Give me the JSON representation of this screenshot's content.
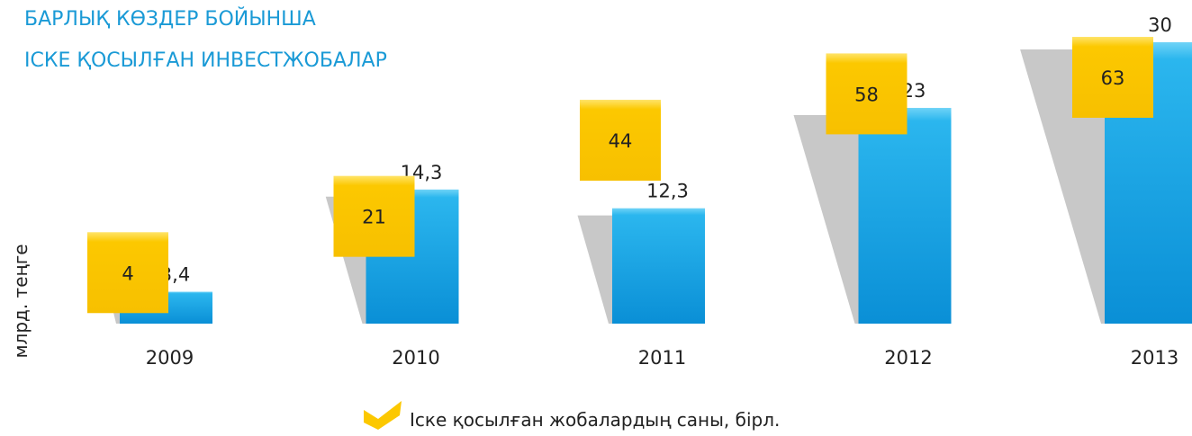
{
  "chart_data": {
    "type": "bar",
    "title": [
      "БАРЛЫҚ КӨЗДЕР БОЙЫНША",
      "ІСКЕ ҚОСЫЛҒАН ИНВЕСТЖОБАЛАР"
    ],
    "ylabel": "млрд. теңге",
    "categories": [
      "2009",
      "2010",
      "2011",
      "2012",
      "2013"
    ],
    "series": [
      {
        "color": "#0a97db",
        "values": [
          3.4,
          14.3,
          12.3,
          23,
          30
        ],
        "value_labels": [
          "3,4",
          "14,3",
          "12,3",
          "23",
          "30"
        ]
      },
      {
        "name": "Іске қосылған жобалардың саны, бірл.",
        "color": "#fcc800",
        "axis": "y2",
        "values": [
          4,
          21,
          44,
          58,
          63
        ]
      }
    ]
  }
}
